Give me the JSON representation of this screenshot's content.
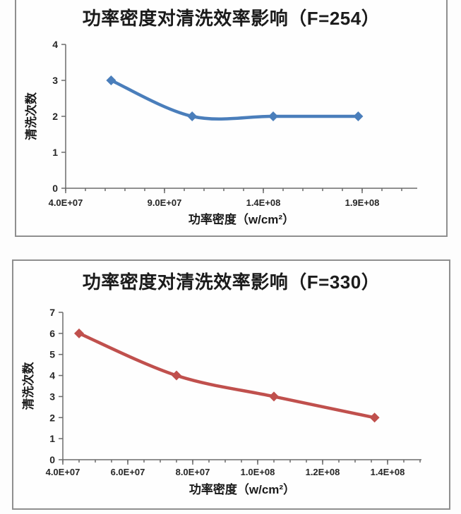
{
  "page": {
    "background": "#fdfdfd",
    "card_border_color": "#8f8f8f"
  },
  "chart_data": [
    {
      "type": "line",
      "title": "功率密度对清洗效率影响（F=254）",
      "xlabel": "功率密度（w/cm²）",
      "ylabel": "清洗次数",
      "series": [
        {
          "name": "清洗次数",
          "color": "#4a7ebb",
          "points": [
            {
              "x": 63000000,
              "y": 3
            },
            {
              "x": 104000000,
              "y": 2
            },
            {
              "x": 145000000,
              "y": 2
            },
            {
              "x": 188000000,
              "y": 2
            }
          ]
        }
      ],
      "xlim": [
        40000000,
        220000000
      ],
      "ylim": [
        0,
        4
      ],
      "x_ticks": [
        {
          "value": 40000000,
          "label": "4.0E+07"
        },
        {
          "value": 90000000,
          "label": "9.0E+07"
        },
        {
          "value": 140000000,
          "label": "1.4E+08"
        },
        {
          "value": 190000000,
          "label": "1.9E+08"
        }
      ],
      "x_minor_step": 10000000,
      "y_ticks": [
        {
          "value": 0,
          "label": "0"
        },
        {
          "value": 1,
          "label": "1"
        },
        {
          "value": 2,
          "label": "2"
        },
        {
          "value": 3,
          "label": "3"
        },
        {
          "value": 4,
          "label": "4"
        }
      ],
      "marker": "diamond",
      "smooth": true,
      "grid": false,
      "legend": "none"
    },
    {
      "type": "line",
      "title": "功率密度对清洗效率影响（F=330）",
      "xlabel": "功率密度（w/cm²）",
      "ylabel": "清洗次数",
      "series": [
        {
          "name": "清洗次数",
          "color": "#c0504d",
          "points": [
            {
              "x": 45000000,
              "y": 6
            },
            {
              "x": 75000000,
              "y": 4
            },
            {
              "x": 105000000,
              "y": 3
            },
            {
              "x": 136000000,
              "y": 2
            }
          ]
        }
      ],
      "xlim": [
        40000000,
        150000000
      ],
      "ylim": [
        0,
        7
      ],
      "x_ticks": [
        {
          "value": 40000000,
          "label": "4.0E+07"
        },
        {
          "value": 60000000,
          "label": "6.0E+07"
        },
        {
          "value": 80000000,
          "label": "8.0E+07"
        },
        {
          "value": 100000000,
          "label": "1.0E+08"
        },
        {
          "value": 120000000,
          "label": "1.2E+08"
        },
        {
          "value": 140000000,
          "label": "1.4E+08"
        }
      ],
      "x_minor_step": 5000000,
      "y_ticks": [
        {
          "value": 0,
          "label": "0"
        },
        {
          "value": 1,
          "label": "1"
        },
        {
          "value": 2,
          "label": "2"
        },
        {
          "value": 3,
          "label": "3"
        },
        {
          "value": 4,
          "label": "4"
        },
        {
          "value": 5,
          "label": "5"
        },
        {
          "value": 6,
          "label": "6"
        },
        {
          "value": 7,
          "label": "7"
        }
      ],
      "marker": "diamond",
      "smooth": true,
      "grid": false,
      "legend": "none"
    }
  ]
}
